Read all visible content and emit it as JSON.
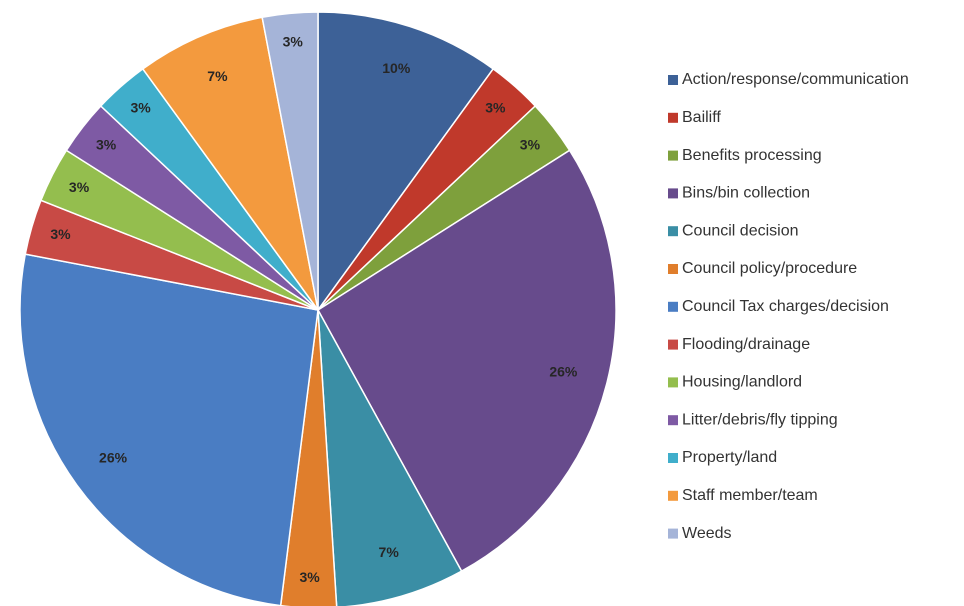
{
  "chart_data": {
    "type": "pie",
    "title": "",
    "categories": [
      "Action/response/communication",
      "Bailiff",
      "Benefits processing",
      "Bins/bin collection",
      "Council decision",
      "Council policy/procedure",
      "Council Tax charges/decision",
      "Flooding/drainage",
      "Housing/landlord",
      "Litter/debris/fly tipping",
      "Property/land",
      "Staff member/team",
      "Weeds"
    ],
    "values": [
      10,
      3,
      3,
      26,
      7,
      3,
      26,
      3,
      3,
      3,
      3,
      7,
      3
    ],
    "data_labels": [
      "10%",
      "3%",
      "3%",
      "26%",
      "7%",
      "3%",
      "26%",
      "3%",
      "3%",
      "3%",
      "3%",
      "7%",
      "3%"
    ],
    "colors": [
      "#3D6197",
      "#C0392B",
      "#7EA03C",
      "#674B8C",
      "#3A8EA5",
      "#E07E2C",
      "#4A7DC3",
      "#C84A45",
      "#94BE4E",
      "#7E5AA4",
      "#40AECB",
      "#F39A3E",
      "#A5B4D8"
    ],
    "legend_position": "right",
    "start_angle_deg": 0,
    "direction": "clockwise"
  }
}
